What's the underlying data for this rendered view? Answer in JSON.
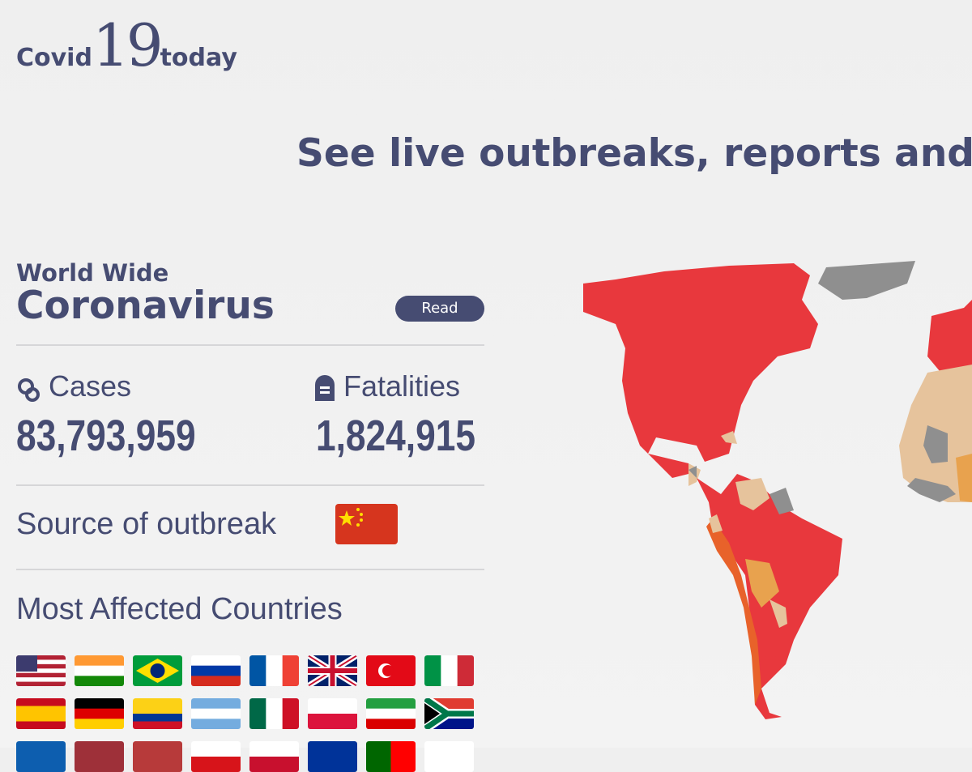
{
  "header": {
    "logo": {
      "left": "Covid",
      "number": "19",
      "right": "today"
    },
    "headline": "See live outbreaks, reports and s"
  },
  "panel": {
    "kicker": "World Wide",
    "title": "Coronavirus",
    "read_button": "Read",
    "cases": {
      "label": "Cases",
      "value": "83,793,959"
    },
    "fatalities": {
      "label": "Fatalities",
      "value": "1,824,915"
    },
    "source_label": "Source of outbreak",
    "most_affected_title": "Most Affected Countries"
  }
}
